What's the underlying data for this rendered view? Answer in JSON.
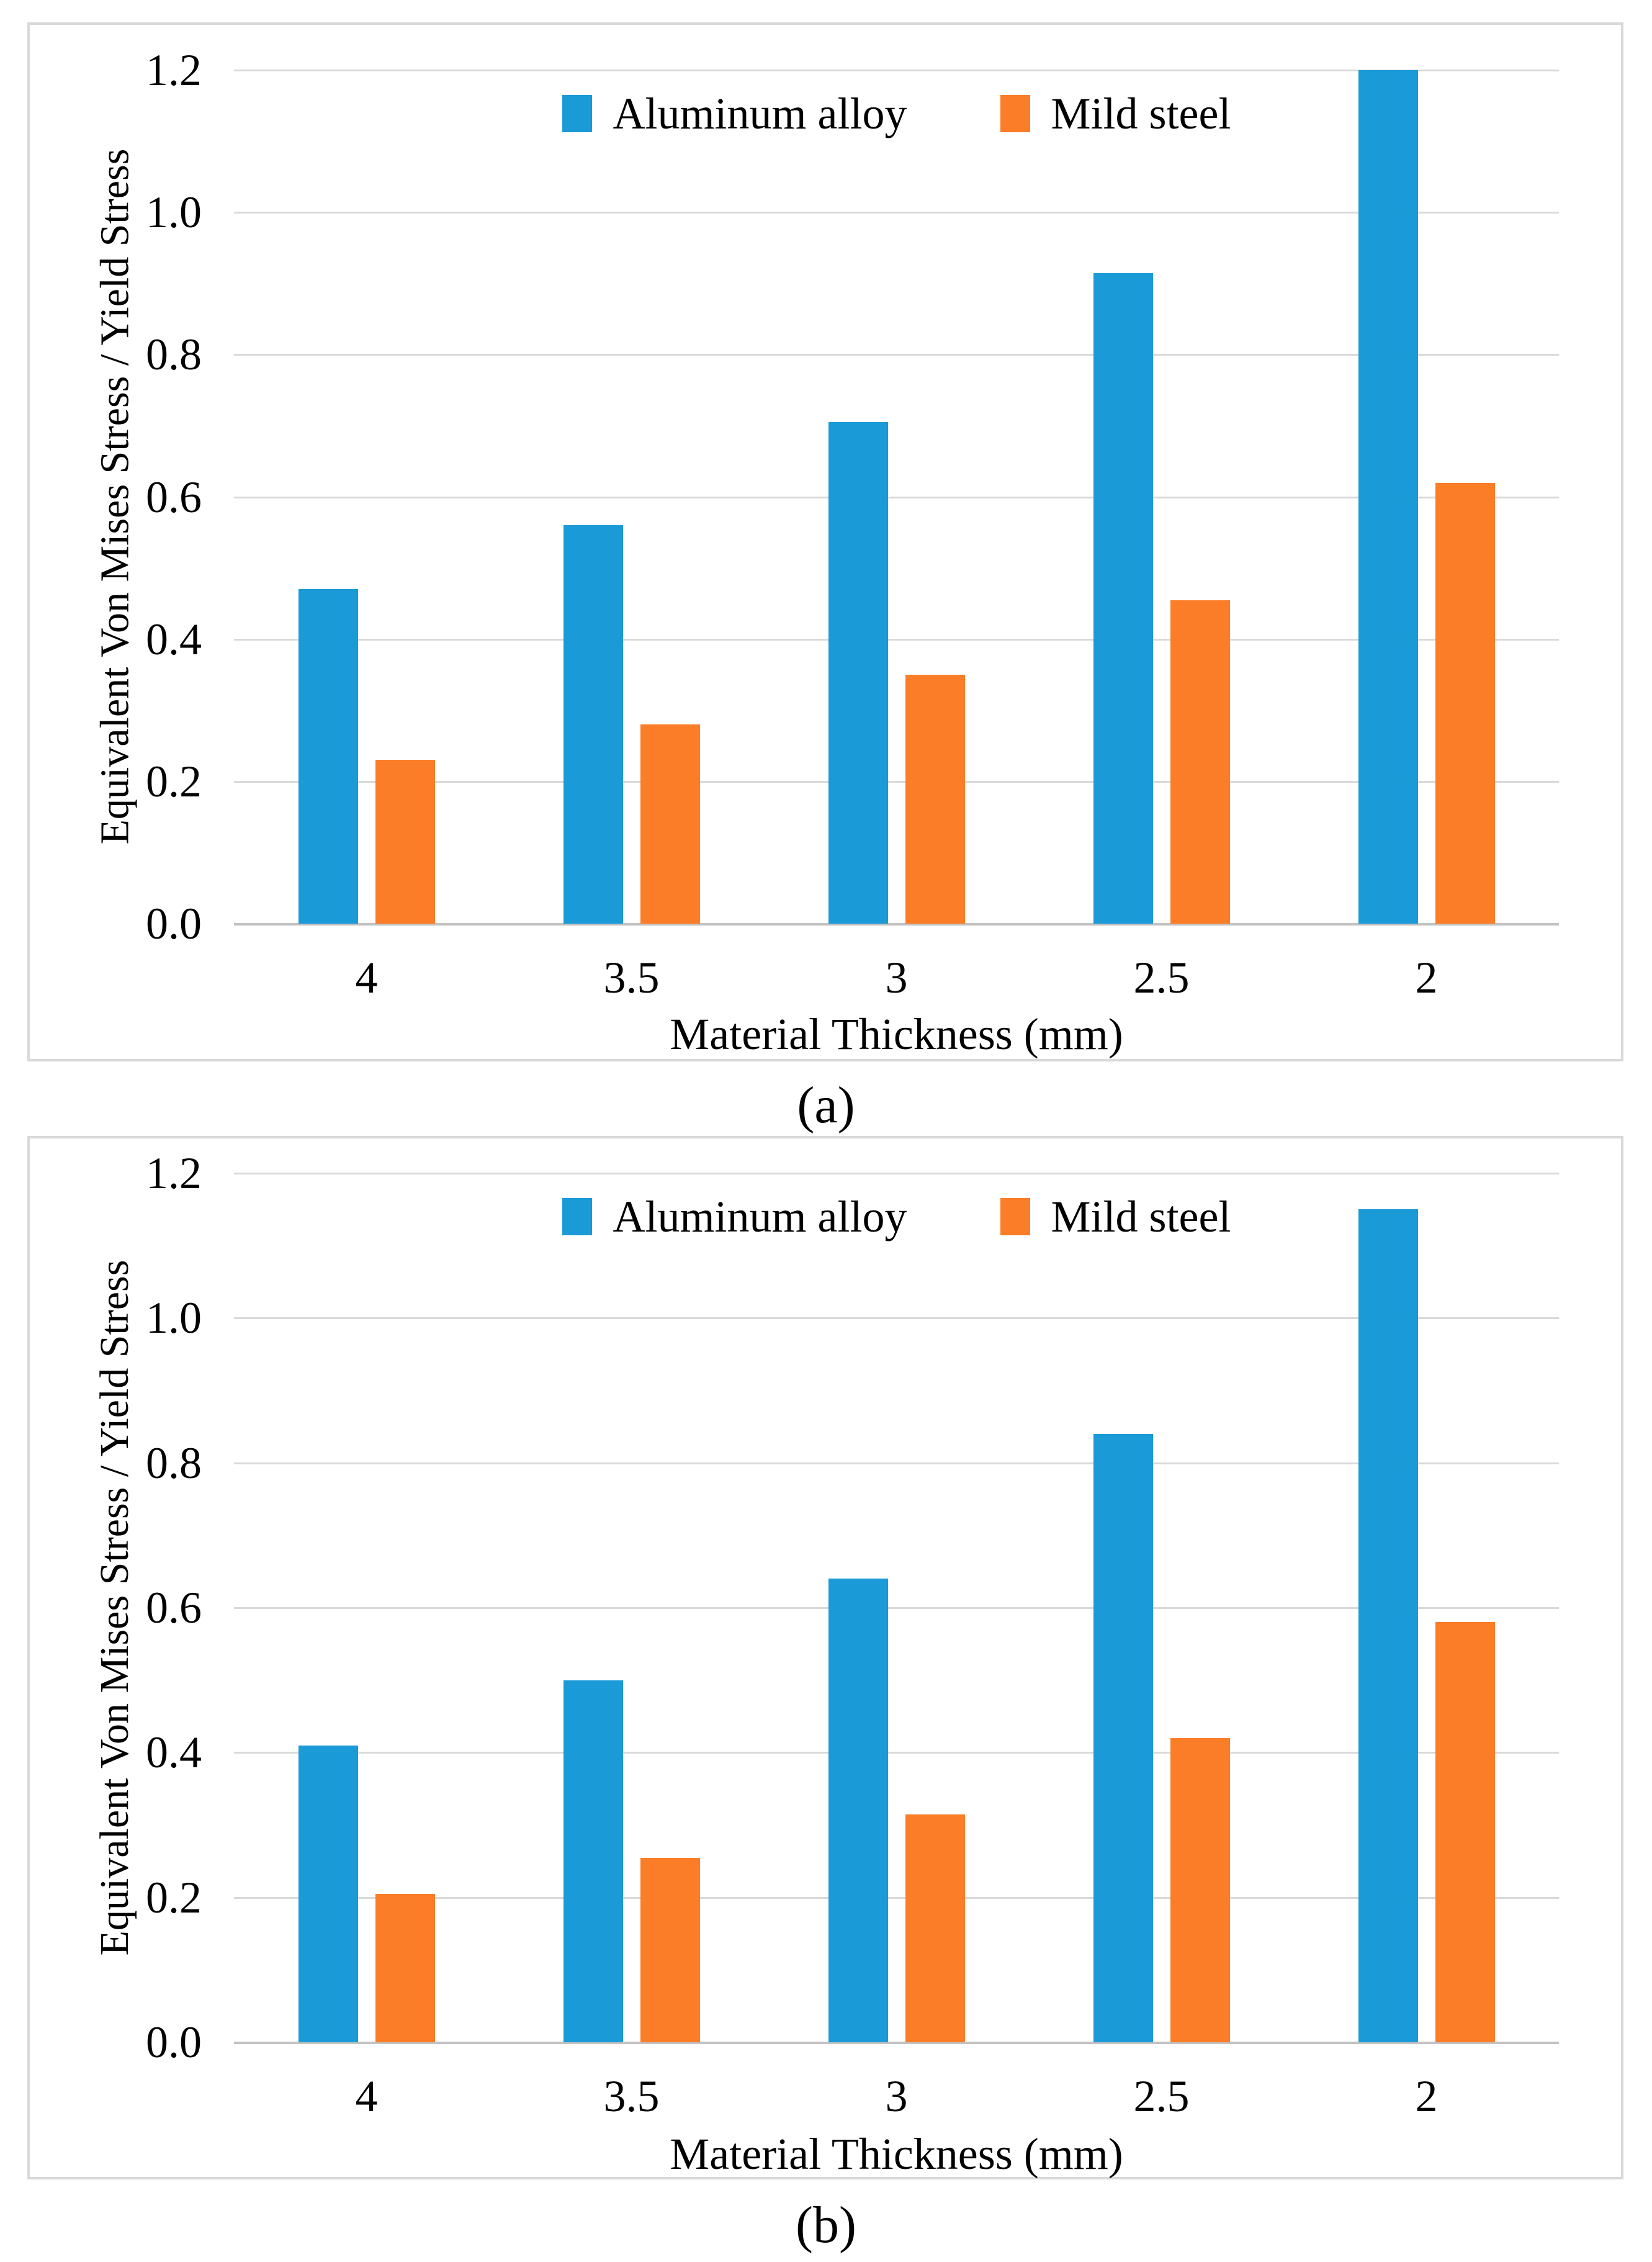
{
  "figure": {
    "captions": [
      "(a)",
      "(b)"
    ]
  },
  "colors": {
    "aluminum_blue": "#1a9ad6",
    "mild_steel_orange": "#fb7d28",
    "gridline_gray": "#d9d9d9",
    "axis_line_gray": "#c2c2c2",
    "text_black": "#000000"
  },
  "chart_data": [
    {
      "type": "bar",
      "caption": "(a)",
      "categories": [
        "4",
        "3.5",
        "3",
        "2.5",
        "2"
      ],
      "series": [
        {
          "name": "Aluminum alloy",
          "color": "#1a9ad6",
          "values": [
            0.47,
            0.56,
            0.705,
            0.915,
            1.2
          ]
        },
        {
          "name": "Mild steel",
          "color": "#fb7d28",
          "values": [
            0.23,
            0.28,
            0.35,
            0.455,
            0.62
          ]
        }
      ],
      "xlabel": "Material Thickness (mm)",
      "ylabel": "Equivalent Von Mises Stress / Yield Stress",
      "ylim": [
        0,
        1.2
      ],
      "yticks": [
        0.0,
        0.2,
        0.4,
        0.6,
        0.8,
        1.0,
        1.2
      ],
      "ytick_labels": [
        "0.0",
        "0.2",
        "0.4",
        "0.6",
        "0.8",
        "1.0",
        "1.2"
      ],
      "grid": true,
      "legend_position": "top-center"
    },
    {
      "type": "bar",
      "caption": "(b)",
      "categories": [
        "4",
        "3.5",
        "3",
        "2.5",
        "2"
      ],
      "series": [
        {
          "name": "Aluminum alloy",
          "color": "#1a9ad6",
          "values": [
            0.41,
            0.5,
            0.64,
            0.84,
            1.15
          ]
        },
        {
          "name": "Mild steel",
          "color": "#fb7d28",
          "values": [
            0.205,
            0.255,
            0.315,
            0.42,
            0.58
          ]
        }
      ],
      "xlabel": "Material Thickness (mm)",
      "ylabel": "Equivalent Von Mises Stress / Yield Stress",
      "ylim": [
        0,
        1.2
      ],
      "yticks": [
        0.0,
        0.2,
        0.4,
        0.6,
        0.8,
        1.0,
        1.2
      ],
      "ytick_labels": [
        "0.0",
        "0.2",
        "0.4",
        "0.6",
        "0.8",
        "1.0",
        "1.2"
      ],
      "grid": true,
      "legend_position": "top-center"
    }
  ]
}
